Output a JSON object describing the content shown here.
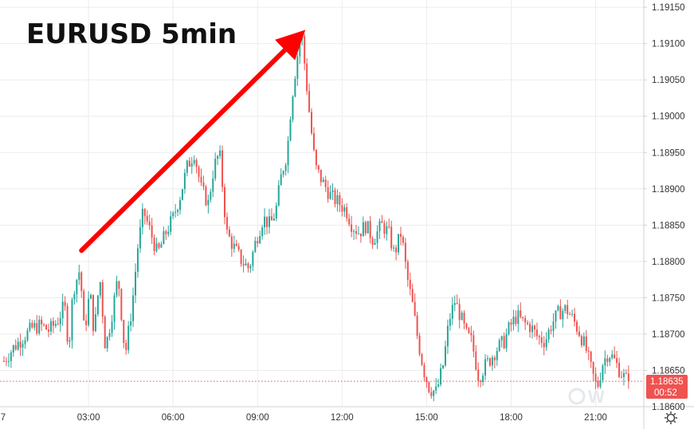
{
  "chart_data": {
    "type": "candlestick",
    "title": "EURUSD 5min",
    "price_axis": {
      "ticks": [
        "1.19150",
        "1.19100",
        "1.19050",
        "1.19000",
        "1.18950",
        "1.18900",
        "1.18850",
        "1.18800",
        "1.18750",
        "1.18700",
        "1.18650",
        "1.18600"
      ],
      "ylim": [
        1.186,
        1.1916
      ]
    },
    "time_axis": {
      "ticks": [
        "7",
        "03:00",
        "06:00",
        "09:00",
        "12:00",
        "15:00",
        "18:00",
        "21:00"
      ],
      "xlim_hours": [
        0,
        22.2
      ]
    },
    "last_price": {
      "value": "1.18635",
      "countdown": "00:52"
    },
    "up_color": "#26a69a",
    "down_color": "#ef5350",
    "annotation_arrow": {
      "from": [
        "02:45",
        1.18815
      ],
      "to": [
        "10:20",
        1.19105
      ],
      "color": "#ff0000"
    },
    "close_path": [
      [
        0.0,
        1.18663
      ],
      [
        0.35,
        1.18682
      ],
      [
        0.7,
        1.18696
      ],
      [
        1.0,
        1.18708
      ],
      [
        1.3,
        1.18712
      ],
      [
        1.6,
        1.18705
      ],
      [
        1.9,
        1.18718
      ],
      [
        2.15,
        1.1874
      ],
      [
        2.3,
        1.1868
      ],
      [
        2.45,
        1.1876
      ],
      [
        2.7,
        1.1879
      ],
      [
        2.85,
        1.187
      ],
      [
        3.05,
        1.1876
      ],
      [
        3.2,
        1.187
      ],
      [
        3.4,
        1.1878
      ],
      [
        3.6,
        1.1868
      ],
      [
        3.8,
        1.1872
      ],
      [
        4.05,
        1.1878
      ],
      [
        4.3,
        1.1867
      ],
      [
        4.55,
        1.1874
      ],
      [
        4.75,
        1.1882
      ],
      [
        4.95,
        1.1887
      ],
      [
        5.2,
        1.1884
      ],
      [
        5.45,
        1.1881
      ],
      [
        5.75,
        1.1884
      ],
      [
        6.0,
        1.1886
      ],
      [
        6.25,
        1.1889
      ],
      [
        6.5,
        1.1893
      ],
      [
        6.75,
        1.1895
      ],
      [
        7.0,
        1.189
      ],
      [
        7.25,
        1.1888
      ],
      [
        7.45,
        1.1893
      ],
      [
        7.65,
        1.1895
      ],
      [
        7.9,
        1.1884
      ],
      [
        8.15,
        1.1882
      ],
      [
        8.45,
        1.188
      ],
      [
        8.7,
        1.1879
      ],
      [
        8.95,
        1.1883
      ],
      [
        9.2,
        1.1886
      ],
      [
        9.45,
        1.1885
      ],
      [
        9.65,
        1.1887
      ],
      [
        9.85,
        1.1892
      ],
      [
        10.05,
        1.1895
      ],
      [
        10.2,
        1.1902
      ],
      [
        10.4,
        1.1908
      ],
      [
        10.55,
        1.1912
      ],
      [
        10.7,
        1.1906
      ],
      [
        10.85,
        1.19
      ],
      [
        11.05,
        1.1893
      ],
      [
        11.3,
        1.1891
      ],
      [
        11.6,
        1.1889
      ],
      [
        11.9,
        1.1888
      ],
      [
        12.15,
        1.1887
      ],
      [
        12.35,
        1.1885
      ],
      [
        12.6,
        1.1884
      ],
      [
        12.85,
        1.1885
      ],
      [
        13.1,
        1.1883
      ],
      [
        13.4,
        1.1885
      ],
      [
        13.65,
        1.1884
      ],
      [
        13.85,
        1.1881
      ],
      [
        14.1,
        1.1884
      ],
      [
        14.3,
        1.1878
      ],
      [
        14.5,
        1.1874
      ],
      [
        14.7,
        1.1869
      ],
      [
        14.9,
        1.1865
      ],
      [
        15.1,
        1.18625
      ],
      [
        15.35,
        1.1862
      ],
      [
        15.6,
        1.1866
      ],
      [
        15.8,
        1.1872
      ],
      [
        16.0,
        1.18745
      ],
      [
        16.2,
        1.18725
      ],
      [
        16.4,
        1.187
      ],
      [
        16.6,
        1.1869
      ],
      [
        16.85,
        1.1864
      ],
      [
        17.05,
        1.18655
      ],
      [
        17.25,
        1.18665
      ],
      [
        17.5,
        1.1868
      ],
      [
        17.75,
        1.1869
      ],
      [
        17.95,
        1.1871
      ],
      [
        18.2,
        1.18725
      ],
      [
        18.45,
        1.18715
      ],
      [
        18.7,
        1.1871
      ],
      [
        18.95,
        1.18695
      ],
      [
        19.2,
        1.1869
      ],
      [
        19.45,
        1.18715
      ],
      [
        19.7,
        1.1873
      ],
      [
        19.95,
        1.18735
      ],
      [
        20.2,
        1.1872
      ],
      [
        20.45,
        1.187
      ],
      [
        20.65,
        1.1868
      ],
      [
        20.85,
        1.1865
      ],
      [
        21.05,
        1.18625
      ],
      [
        21.25,
        1.1866
      ],
      [
        21.45,
        1.18675
      ],
      [
        21.65,
        1.18665
      ],
      [
        21.85,
        1.1865
      ],
      [
        22.05,
        1.18638
      ],
      [
        22.2,
        1.18635
      ]
    ]
  }
}
